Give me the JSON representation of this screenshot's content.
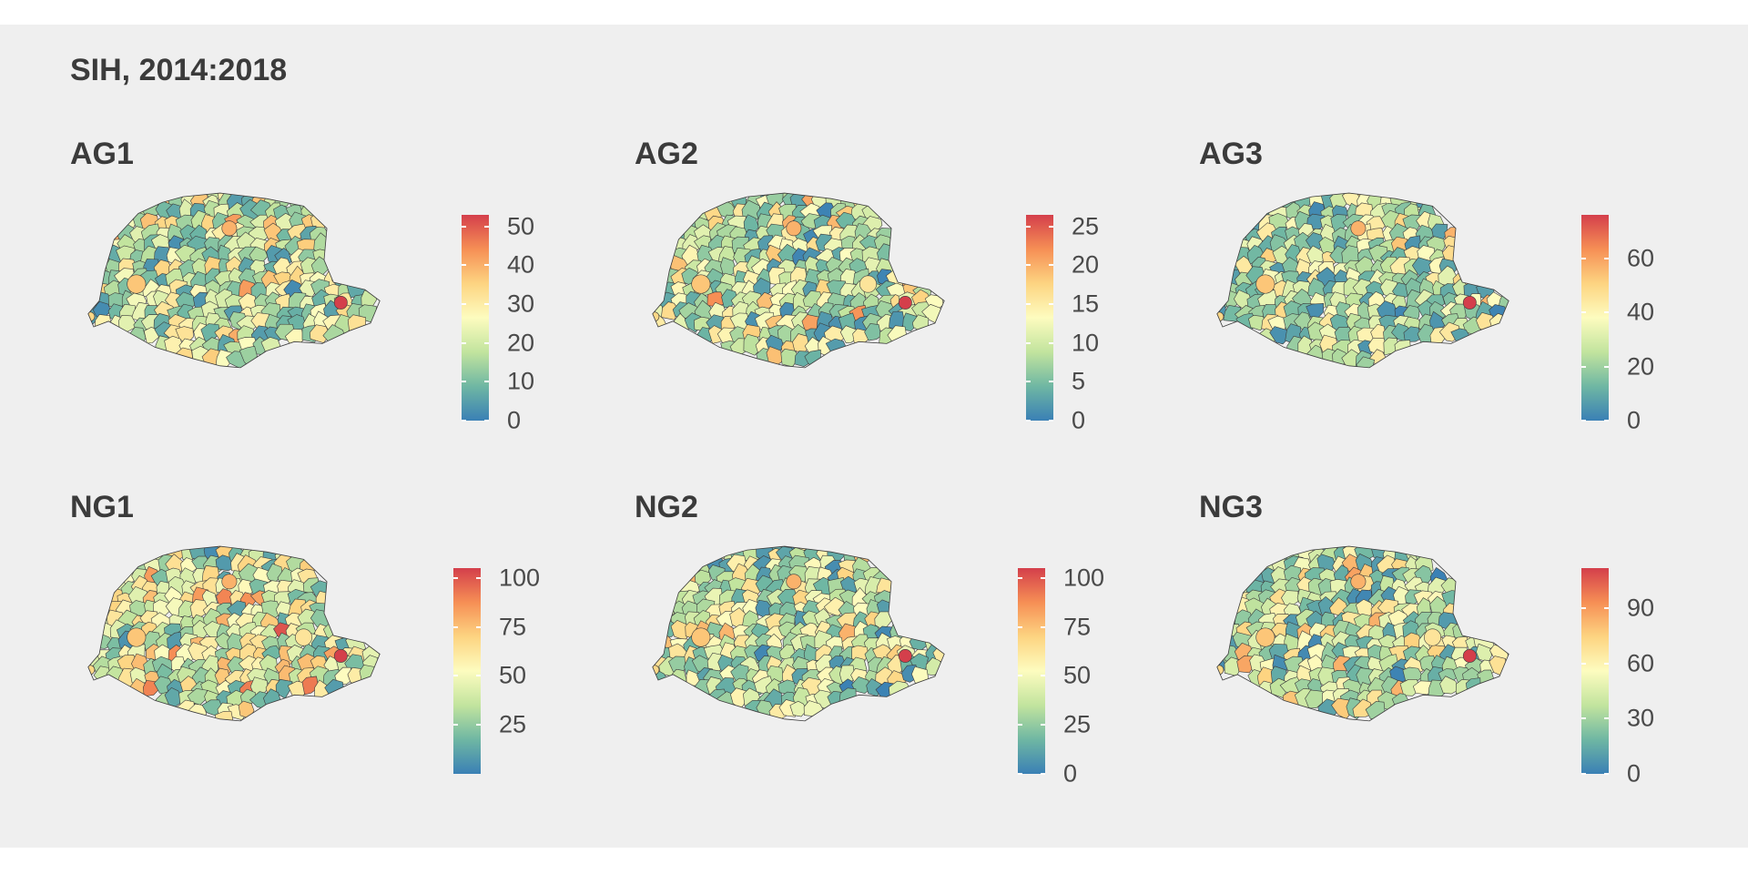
{
  "title": "SIH, 2014:2018",
  "colors": {
    "scale": [
      "#3a80b5",
      "#6fb7a3",
      "#c2e49e",
      "#fdfcbf",
      "#fdd481",
      "#f68f55",
      "#d43f4b"
    ],
    "background": "#efefef",
    "border": "#3d3d3d"
  },
  "chart_data": [
    {
      "type": "map",
      "title": "AG1",
      "legend": {
        "ticks": [
          0,
          10,
          20,
          30,
          40,
          50
        ],
        "range": [
          0,
          53
        ],
        "labels": [
          "0",
          "10",
          "20",
          "30",
          "40",
          "50"
        ]
      }
    },
    {
      "type": "map",
      "title": "AG2",
      "legend": {
        "ticks": [
          0,
          5,
          10,
          15,
          20,
          25
        ],
        "range": [
          0,
          26.5
        ],
        "labels": [
          "0",
          "5",
          "10",
          "15",
          "20",
          "25"
        ]
      }
    },
    {
      "type": "map",
      "title": "AG3",
      "legend": {
        "ticks": [
          0,
          20,
          40,
          60
        ],
        "range": [
          0,
          76
        ],
        "labels": [
          "0",
          "20",
          "40",
          "60"
        ]
      }
    },
    {
      "type": "map",
      "title": "NG1",
      "legend": {
        "ticks": [
          25,
          50,
          75,
          100
        ],
        "range": [
          0,
          105
        ],
        "labels": [
          "25",
          "50",
          "75",
          "100"
        ]
      }
    },
    {
      "type": "map",
      "title": "NG2",
      "legend": {
        "ticks": [
          0,
          25,
          50,
          75,
          100
        ],
        "range": [
          0,
          105
        ],
        "labels": [
          "0",
          "25",
          "50",
          "75",
          "100"
        ]
      }
    },
    {
      "type": "map",
      "title": "NG3",
      "legend": {
        "ticks": [
          0,
          30,
          60,
          90
        ],
        "range": [
          0,
          112
        ],
        "labels": [
          "0",
          "30",
          "60",
          "90"
        ]
      }
    }
  ]
}
